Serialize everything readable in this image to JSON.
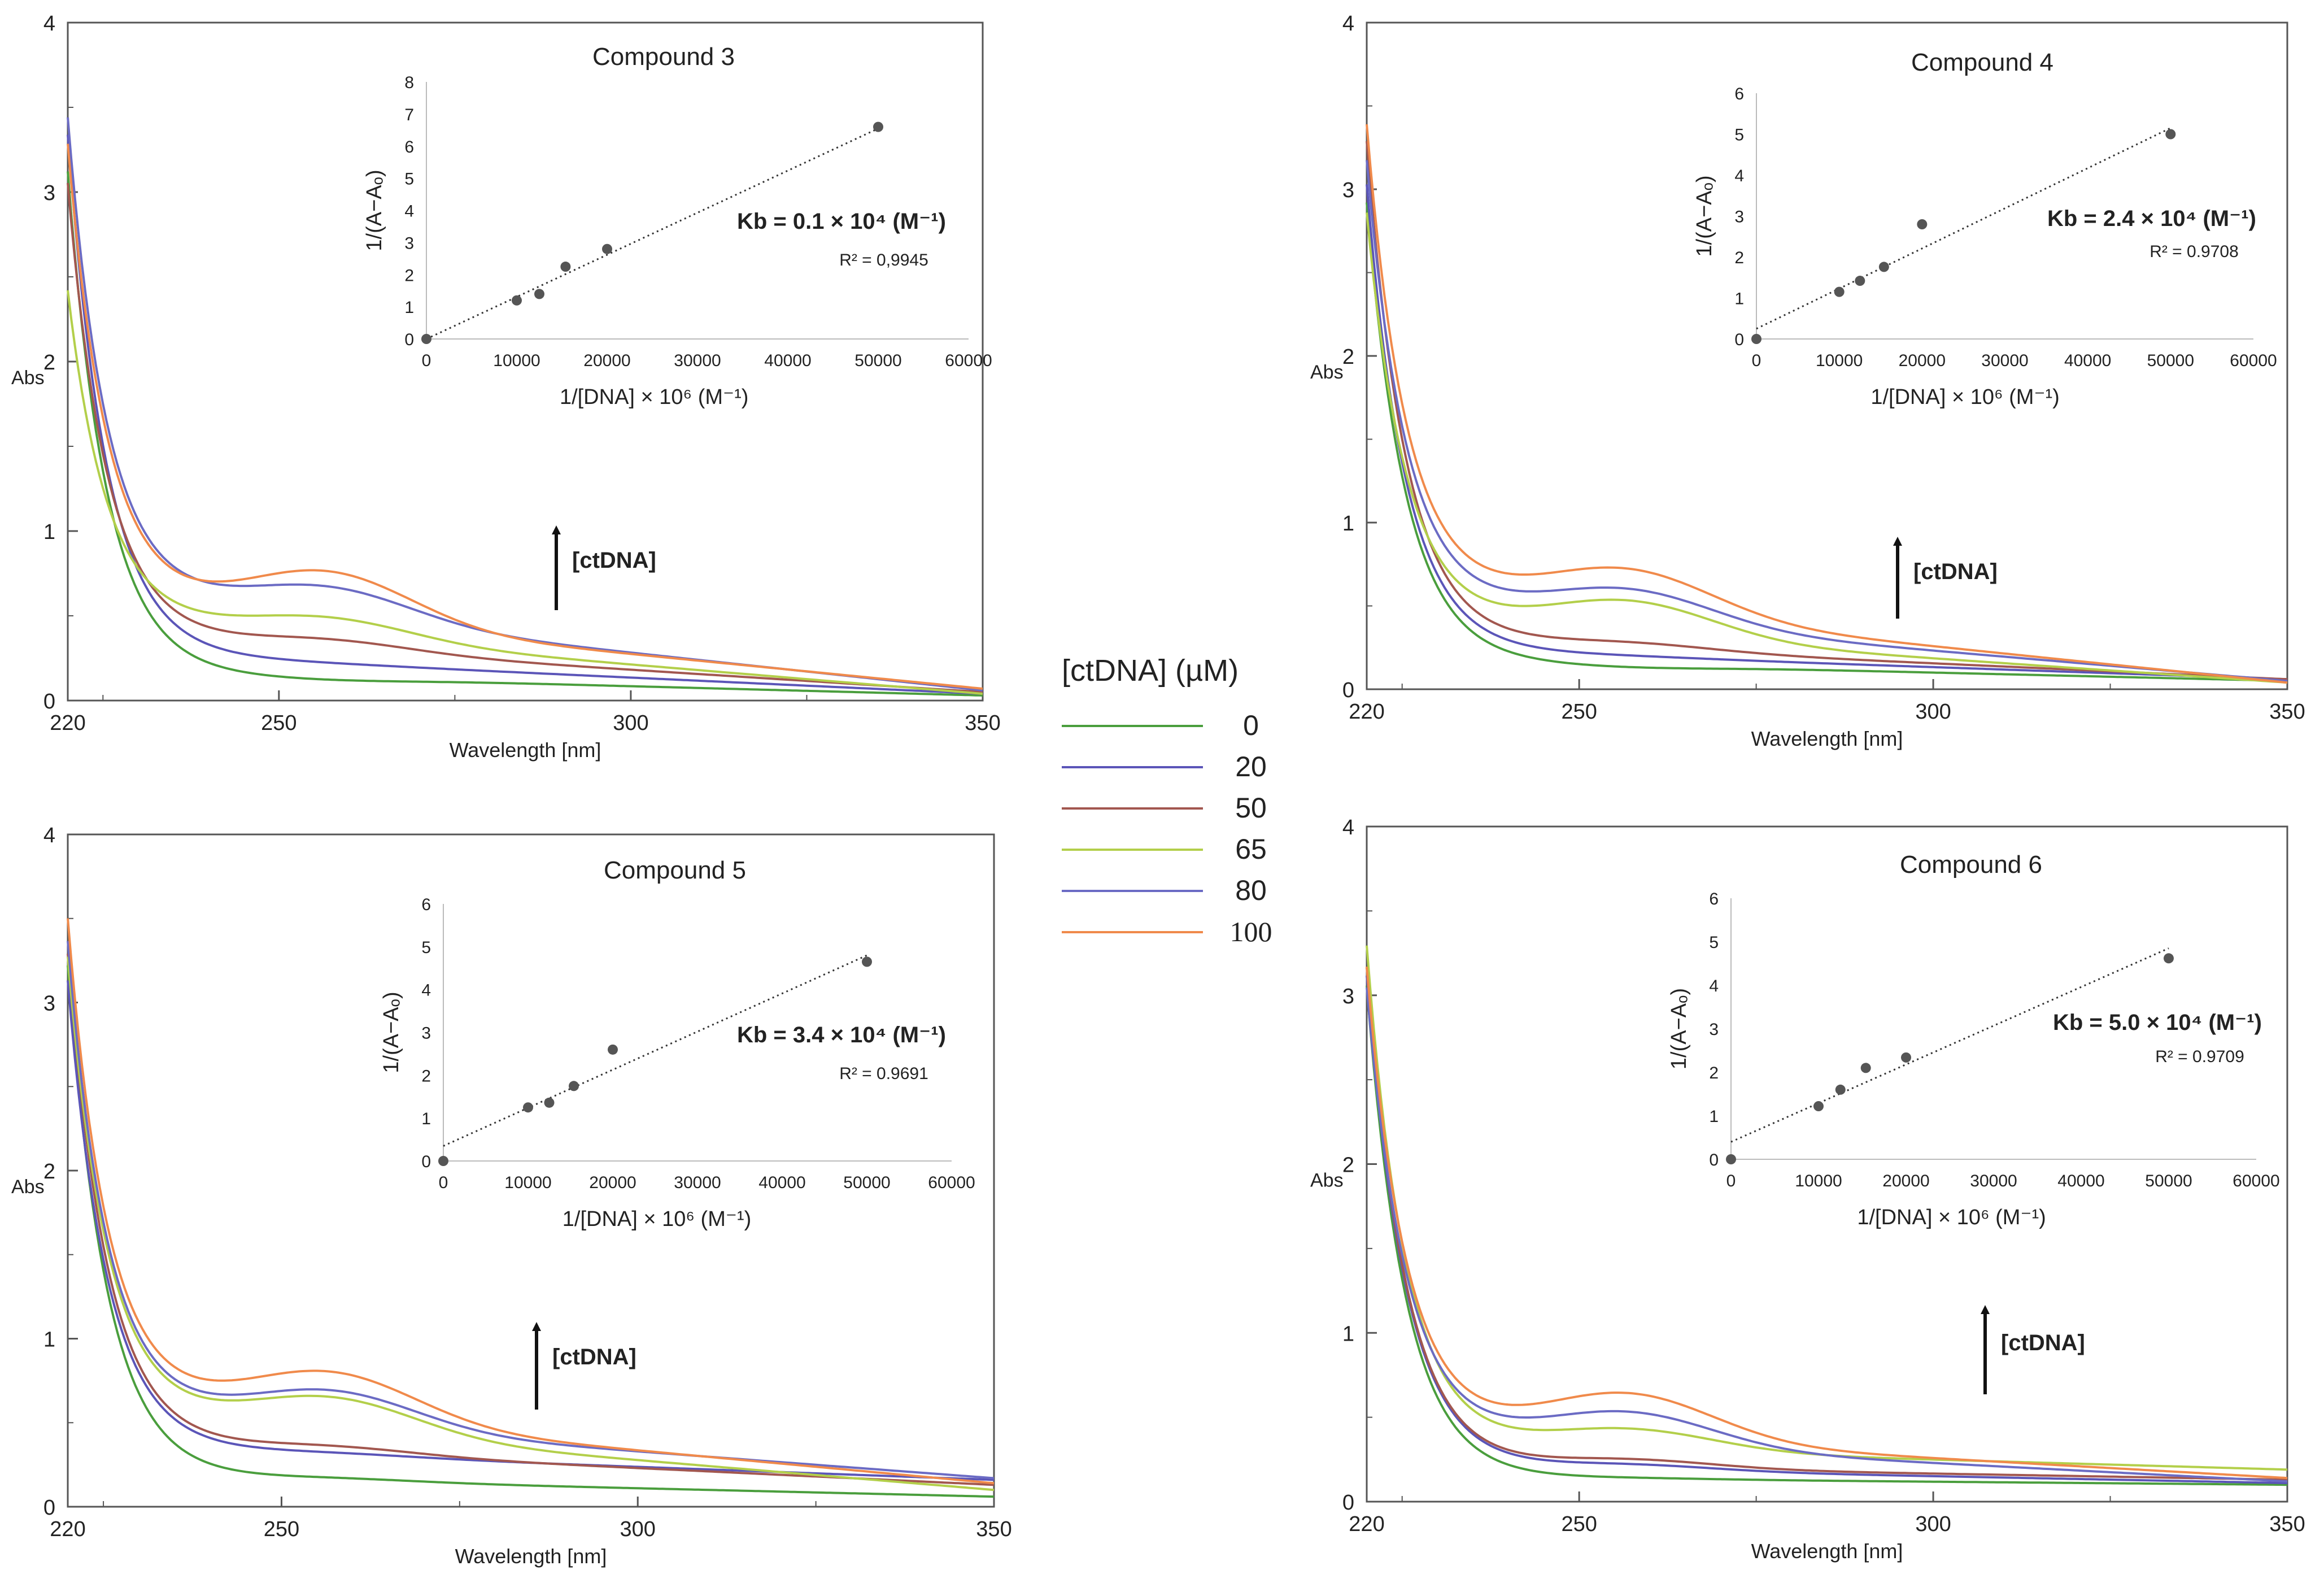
{
  "legend": {
    "title": "[ctDNA] (µM)",
    "entries": [
      {
        "label": "0",
        "color": "#4a9e3d"
      },
      {
        "label": "20",
        "color": "#5b55b8"
      },
      {
        "label": "50",
        "color": "#a2574f"
      },
      {
        "label": "65",
        "color": "#b3cf4a"
      },
      {
        "label": "80",
        "color": "#6b6bc4"
      },
      {
        "label": "100",
        "color": "#f08a4b"
      }
    ]
  },
  "chart_data": [
    {
      "id": "p3",
      "type": "line",
      "xlabel": "Wavelength [nm]",
      "ylabel": "Abs",
      "xlim": [
        220,
        350
      ],
      "ylim": [
        0,
        4
      ],
      "xticks": [
        "220",
        "250",
        "300",
        "350"
      ],
      "yticks": [
        "0",
        "1",
        "2",
        "3",
        "4"
      ],
      "arrow_label": "[ctDNA]",
      "curves": [
        {
          "conc": "0",
          "start": 3.1,
          "knee": 0.15,
          "peak": 0.12,
          "tail": 0.03
        },
        {
          "conc": "20",
          "start": 3.3,
          "knee": 0.25,
          "peak": 0.22,
          "tail": 0.04
        },
        {
          "conc": "50",
          "start": 3.0,
          "knee": 0.34,
          "peak": 0.36,
          "tail": 0.05
        },
        {
          "conc": "65",
          "start": 2.35,
          "knee": 0.42,
          "peak": 0.49,
          "tail": 0.04
        },
        {
          "conc": "80",
          "start": 3.35,
          "knee": 0.55,
          "peak": 0.67,
          "tail": 0.06
        },
        {
          "conc": "100",
          "start": 3.2,
          "knee": 0.52,
          "peak": 0.76,
          "tail": 0.07
        }
      ],
      "inset": {
        "type": "scatter",
        "title": "Compound 3",
        "xlabel": "1/[DNA] × 10⁶ (M⁻¹)",
        "ylabel": "1/(A−Aₒ)",
        "xlim": [
          0,
          60000
        ],
        "ylim": [
          0,
          8
        ],
        "xticks": [
          "0",
          "10000",
          "20000",
          "30000",
          "40000",
          "50000",
          "60000"
        ],
        "yticks": [
          "0",
          "1",
          "2",
          "3",
          "4",
          "5",
          "6",
          "7",
          "8"
        ],
        "x": [
          0,
          10000,
          12500,
          15400,
          20000,
          50000
        ],
        "y": [
          0,
          1.2,
          1.4,
          2.25,
          2.8,
          6.6
        ],
        "fit": [
          0.0,
          6.55
        ],
        "kb": "Kb = 0.1 × 10⁴ (M⁻¹)",
        "r2": "R² = 0,9945"
      }
    },
    {
      "id": "p4",
      "type": "line",
      "xlabel": "Wavelength [nm]",
      "ylabel": "Abs",
      "xlim": [
        220,
        350
      ],
      "ylim": [
        0,
        4
      ],
      "xticks": [
        "220",
        "250",
        "300",
        "350"
      ],
      "yticks": [
        "0",
        "1",
        "2",
        "3",
        "4"
      ],
      "arrow_label": "[ctDNA]",
      "curves": [
        {
          "conc": "0",
          "start": 2.9,
          "knee": 0.16,
          "peak": 0.13,
          "tail": 0.05
        },
        {
          "conc": "20",
          "start": 3.0,
          "knee": 0.22,
          "peak": 0.2,
          "tail": 0.06
        },
        {
          "conc": "50",
          "start": 3.25,
          "knee": 0.27,
          "peak": 0.28,
          "tail": 0.06
        },
        {
          "conc": "65",
          "start": 2.8,
          "knee": 0.36,
          "peak": 0.53,
          "tail": 0.04
        },
        {
          "conc": "80",
          "start": 3.1,
          "knee": 0.45,
          "peak": 0.6,
          "tail": 0.05
        },
        {
          "conc": "100",
          "start": 3.3,
          "knee": 0.52,
          "peak": 0.72,
          "tail": 0.04
        }
      ],
      "inset": {
        "type": "scatter",
        "title": "Compound 4",
        "xlabel": "1/[DNA] × 10⁶ (M⁻¹)",
        "ylabel": "1/(A−Aₒ)",
        "xlim": [
          0,
          60000
        ],
        "ylim": [
          0,
          6
        ],
        "xticks": [
          "0",
          "10000",
          "20000",
          "30000",
          "40000",
          "50000",
          "60000"
        ],
        "yticks": [
          "0",
          "1",
          "2",
          "3",
          "4",
          "5",
          "6"
        ],
        "x": [
          0,
          10000,
          12500,
          15400,
          20000,
          50000
        ],
        "y": [
          0,
          1.15,
          1.42,
          1.76,
          2.8,
          5.0
        ],
        "fit": [
          0.25,
          5.15
        ],
        "kb": "Kb = 2.4 × 10⁴ (M⁻¹)",
        "r2": "R² = 0.9708"
      }
    },
    {
      "id": "p5",
      "type": "line",
      "xlabel": "Wavelength [nm]",
      "ylabel": "Abs",
      "xlim": [
        220,
        350
      ],
      "ylim": [
        0,
        4
      ],
      "xticks": [
        "220",
        "250",
        "300",
        "350"
      ],
      "yticks": [
        "0",
        "1",
        "2",
        "3",
        "4"
      ],
      "arrow_label": "[ctDNA]",
      "curves": [
        {
          "conc": "0",
          "start": 3.2,
          "knee": 0.17,
          "peak": 0.17,
          "tail": 0.06
        },
        {
          "conc": "20",
          "start": 3.1,
          "knee": 0.33,
          "peak": 0.32,
          "tail": 0.16
        },
        {
          "conc": "50",
          "start": 3.25,
          "knee": 0.35,
          "peak": 0.36,
          "tail": 0.13
        },
        {
          "conc": "65",
          "start": 3.2,
          "knee": 0.49,
          "peak": 0.65,
          "tail": 0.1
        },
        {
          "conc": "80",
          "start": 3.3,
          "knee": 0.52,
          "peak": 0.69,
          "tail": 0.17
        },
        {
          "conc": "100",
          "start": 3.42,
          "knee": 0.57,
          "peak": 0.8,
          "tail": 0.14
        }
      ],
      "inset": {
        "type": "scatter",
        "title": "Compound 5",
        "xlabel": "1/[DNA] × 10⁶ (M⁻¹)",
        "ylabel": "1/(A−Aₒ)",
        "xlim": [
          0,
          60000
        ],
        "ylim": [
          0,
          6
        ],
        "xticks": [
          "0",
          "10000",
          "20000",
          "30000",
          "40000",
          "50000",
          "60000"
        ],
        "yticks": [
          "0",
          "1",
          "2",
          "3",
          "4",
          "5",
          "6"
        ],
        "x": [
          0,
          10000,
          12500,
          15400,
          20000,
          50000
        ],
        "y": [
          0,
          1.25,
          1.36,
          1.75,
          2.6,
          4.65
        ],
        "fit": [
          0.35,
          4.8
        ],
        "kb": "Kb = 3.4 × 10⁴ (M⁻¹)",
        "r2": "R² = 0.9691"
      }
    },
    {
      "id": "p6",
      "type": "line",
      "xlabel": "Wavelength [nm]",
      "ylabel": "Abs",
      "xlim": [
        220,
        350
      ],
      "ylim": [
        0,
        4
      ],
      "xticks": [
        "220",
        "250",
        "300",
        "350"
      ],
      "yticks": [
        "0",
        "1",
        "2",
        "3",
        "4"
      ],
      "arrow_label": "[ctDNA]",
      "curves": [
        {
          "conc": "0",
          "start": 3.05,
          "knee": 0.14,
          "peak": 0.14,
          "tail": 0.1
        },
        {
          "conc": "20",
          "start": 3.1,
          "knee": 0.2,
          "peak": 0.22,
          "tail": 0.11
        },
        {
          "conc": "50",
          "start": 3.15,
          "knee": 0.21,
          "peak": 0.25,
          "tail": 0.13
        },
        {
          "conc": "65",
          "start": 3.27,
          "knee": 0.32,
          "peak": 0.43,
          "tail": 0.19
        },
        {
          "conc": "80",
          "start": 3.0,
          "knee": 0.36,
          "peak": 0.53,
          "tail": 0.12
        },
        {
          "conc": "100",
          "start": 3.12,
          "knee": 0.4,
          "peak": 0.64,
          "tail": 0.14
        }
      ],
      "inset": {
        "type": "scatter",
        "title": "Compound 6",
        "xlabel": "1/[DNA] × 10⁶ (M⁻¹)",
        "ylabel": "1/(A−Aₒ)",
        "xlim": [
          0,
          60000
        ],
        "ylim": [
          0,
          6
        ],
        "xticks": [
          "0",
          "10000",
          "20000",
          "30000",
          "40000",
          "50000",
          "60000"
        ],
        "yticks": [
          "0",
          "1",
          "2",
          "3",
          "4",
          "5",
          "6"
        ],
        "x": [
          0,
          10000,
          12500,
          15400,
          20000,
          50000
        ],
        "y": [
          0,
          1.22,
          1.6,
          2.1,
          2.34,
          4.62
        ],
        "fit": [
          0.4,
          4.85
        ],
        "kb": "Kb = 5.0 × 10⁴ (M⁻¹)",
        "r2": "R² = 0.9709"
      }
    }
  ]
}
